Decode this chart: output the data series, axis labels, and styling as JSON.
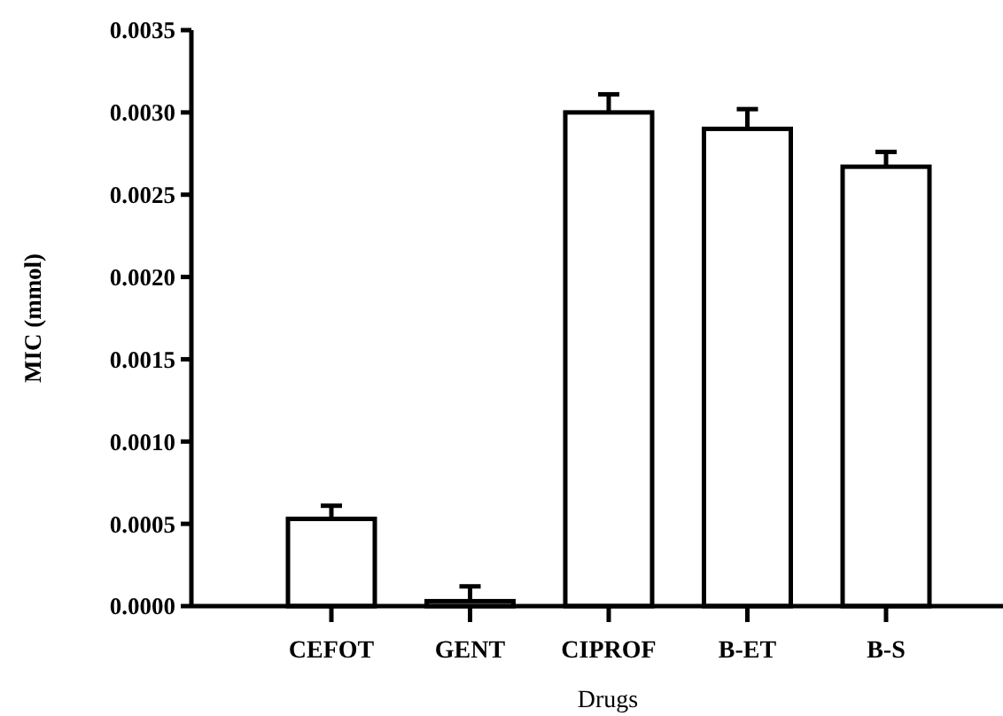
{
  "chart_data": {
    "type": "bar",
    "xlabel": "Drugs",
    "ylabel": "MIC (mmol)",
    "categories": [
      "CEFOT",
      "GENT",
      "CIPROF",
      "B-ET",
      "B-S"
    ],
    "values": [
      0.00053,
      3e-05,
      0.003,
      0.0029,
      0.00267
    ],
    "errors": [
      [
        0.00053,
        0.00061
      ],
      [
        3e-05,
        0.00012
      ],
      [
        0.003,
        0.00311
      ],
      [
        0.0029,
        0.00302
      ],
      [
        0.00267,
        0.00276
      ]
    ],
    "color": "#ffffff",
    "ylim": [
      0,
      0.0035
    ],
    "yticks": [
      {
        "value": 0,
        "label": "0.0000"
      },
      {
        "value": 0.0005,
        "label": "0.0005"
      },
      {
        "value": 0.001,
        "label": "0.0010"
      },
      {
        "value": 0.0015,
        "label": "0.0015"
      },
      {
        "value": 0.002,
        "label": "0.0020"
      },
      {
        "value": 0.0025,
        "label": "0.0025"
      },
      {
        "value": 0.003,
        "label": "0.0030"
      },
      {
        "value": 0.0035,
        "label": "0.0035"
      }
    ],
    "grid": false
  }
}
